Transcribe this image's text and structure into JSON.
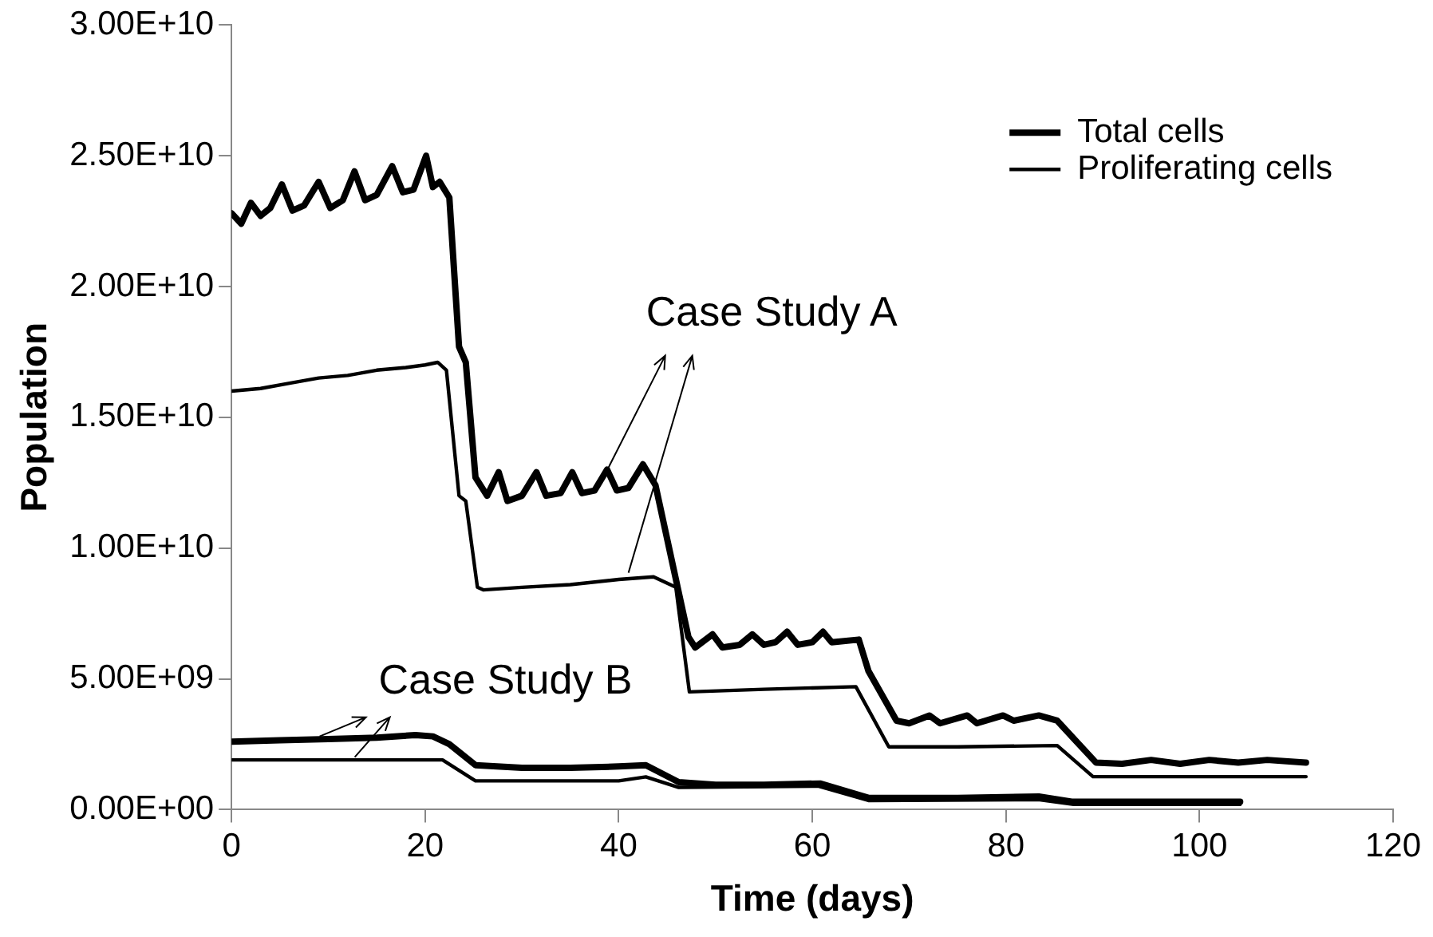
{
  "chart_data": {
    "type": "line",
    "xlabel": "Time (days)",
    "ylabel": "Population",
    "xlim": [
      0,
      120
    ],
    "xticks": [
      0,
      20,
      40,
      60,
      80,
      100,
      120
    ],
    "ylim": [
      0,
      30000000000
    ],
    "yticks": [
      {
        "value": 0,
        "label": "0.00E+00"
      },
      {
        "value": 5000000000,
        "label": "5.00E+09"
      },
      {
        "value": 10000000000,
        "label": "1.00E+10"
      },
      {
        "value": 15000000000,
        "label": "1.50E+10"
      },
      {
        "value": 20000000000,
        "label": "2.00E+10"
      },
      {
        "value": 25000000000,
        "label": "2.50E+10"
      },
      {
        "value": 30000000000,
        "label": "3.00E+10"
      }
    ],
    "grid": false,
    "legend": "top right",
    "marker": "none",
    "line_style": "solid",
    "series": [
      {
        "name": "Total cells",
        "color": "#000000",
        "x": [
          0,
          1,
          2,
          3,
          4,
          5.2,
          6.3,
          7.5,
          9,
          10.2,
          11.5,
          12.7,
          13.8,
          15,
          16.6,
          17.7,
          18.8,
          20.1,
          20.8,
          21.5,
          22.5,
          23.5,
          24.2,
          25.2,
          26.4,
          27.6,
          28.5,
          30,
          31.5,
          32.5,
          34,
          35.2,
          36.2,
          37.5,
          38.8,
          39.8,
          41,
          42.5,
          43.8,
          46.2,
          47.2,
          47.9,
          49.7,
          50.7,
          52.5,
          53.8,
          55,
          56.2,
          57.4,
          58.5,
          60,
          61.1,
          62,
          64.8,
          65.8,
          68.7,
          70,
          72.1,
          73.2,
          76,
          77,
          79.7,
          80.8,
          83.4,
          85.3,
          87.3,
          89.3,
          92,
          95,
          98,
          101,
          104,
          107,
          111
        ],
        "values": [
          22800000000.0,
          22400000000.0,
          23200000000.0,
          22700000000.0,
          23000000000.0,
          23900000000.0,
          22900000000.0,
          23100000000.0,
          24000000000.0,
          23000000000.0,
          23300000000.0,
          24400000000.0,
          23300000000.0,
          23500000000.0,
          24600000000.0,
          23600000000.0,
          23700000000.0,
          25000000000.0,
          23800000000.0,
          24000000000.0,
          23400000000.0,
          17700000000.0,
          17100000000.0,
          12700000000.0,
          12000000000.0,
          12900000000.0,
          11800000000.0,
          12000000000.0,
          12900000000.0,
          12000000000.0,
          12100000000.0,
          12900000000.0,
          12100000000.0,
          12200000000.0,
          13000000000.0,
          12200000000.0,
          12300000000.0,
          13200000000.0,
          12400000000.0,
          8300000000.0,
          6600000000.0,
          6200000000.0,
          6700000000.0,
          6200000000.0,
          6300000000.0,
          6700000000.0,
          6300000000.0,
          6400000000.0,
          6800000000.0,
          6300000000.0,
          6400000000.0,
          6800000000.0,
          6400000000.0,
          6500000000.0,
          5300000000.0,
          3400000000.0,
          3300000000.0,
          3600000000.0,
          3300000000.0,
          3600000000.0,
          3300000000.0,
          3600000000.0,
          3400000000.0,
          3600000000.0,
          3400000000.0,
          2600000000.0,
          1800000000.0,
          1750000000.0,
          1900000000.0,
          1750000000.0,
          1900000000.0,
          1800000000.0,
          1900000000.0,
          1800000000.0
        ]
      },
      {
        "name": "Proliferating cells",
        "color": "#000000",
        "x": [
          0,
          3,
          6,
          9,
          12,
          15,
          18,
          20,
          21.3,
          22.2,
          23.5,
          24.2,
          25.4,
          26,
          30,
          35,
          40,
          43.6,
          45.9,
          47.3,
          55,
          64.5,
          67.9,
          75,
          85.3,
          89,
          100,
          111
        ],
        "values": [
          16000000000.0,
          16100000000.0,
          16300000000.0,
          16500000000.0,
          16600000000.0,
          16800000000.0,
          16900000000.0,
          17000000000.0,
          17100000000.0,
          16800000000.0,
          12000000000.0,
          11800000000.0,
          8500000000.0,
          8400000000.0,
          8500000000.0,
          8600000000.0,
          8800000000.0,
          8900000000.0,
          8500000000.0,
          4500000000.0,
          4600000000.0,
          4700000000.0,
          2400000000.0,
          2400000000.0,
          2450000000.0,
          1260000000.0,
          1260000000.0,
          1260000000.0
        ]
      },
      {
        "color": "#000000",
        "x": [
          0,
          5,
          10,
          15,
          19,
          20.8,
          22.5,
          25.2,
          30,
          35,
          40,
          42.8,
          46.2,
          50,
          55,
          60.8,
          65.8,
          75,
          83.4,
          86.8,
          104.2
        ],
        "values": [
          2600000000.0,
          2650000000.0,
          2700000000.0,
          2750000000.0,
          2850000000.0,
          2800000000.0,
          2500000000.0,
          1700000000.0,
          1600000000.0,
          1600000000.0,
          1650000000.0,
          1700000000.0,
          1050000000.0,
          950000000.0,
          950000000.0,
          1000000000.0,
          450000000.0,
          450000000.0,
          500000000.0,
          300000000.0,
          300000000.0
        ]
      },
      {
        "color": "#000000",
        "x": [
          0,
          21.8,
          25.2,
          40,
          42.8,
          46.2,
          60.6,
          65.8,
          83.5,
          87,
          104.2
        ],
        "values": [
          1900000000.0,
          1900000000.0,
          1100000000.0,
          1100000000.0,
          1250000000.0,
          850000000.0,
          900000000.0,
          350000000.0,
          380000000.0,
          200000000.0,
          200000000.0
        ]
      }
    ],
    "annotations": [
      {
        "text": "Case Study A",
        "x": 38.7,
        "y": 12900000000.0
      },
      {
        "text": "Case Study B",
        "x": 9.1,
        "y": 2800000000.0
      }
    ]
  }
}
